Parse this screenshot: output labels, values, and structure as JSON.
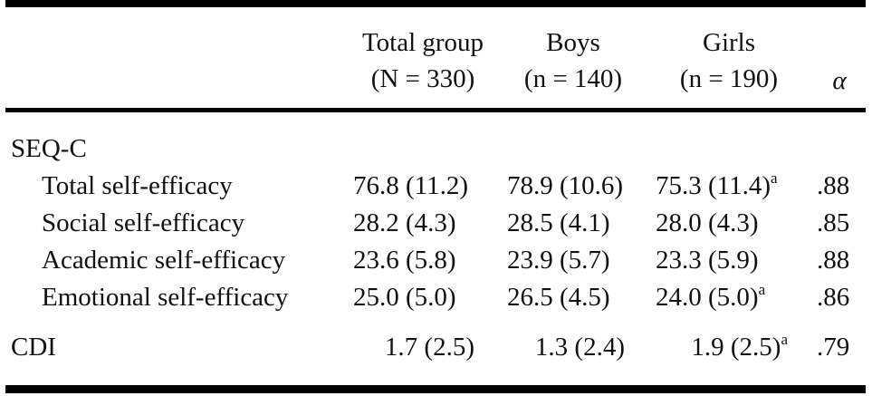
{
  "table": {
    "header": {
      "total_line1": "Total group",
      "total_line2": "(N = 330)",
      "boys_line1": "Boys",
      "boys_line2": "(n = 140)",
      "girls_line1": "Girls",
      "girls_line2": "(n = 190)",
      "alpha": "α"
    },
    "section_seqc": "SEQ-C",
    "rows": [
      {
        "label": "Total self-efficacy",
        "total": "76.8 (11.2)",
        "boys": "78.9 (10.6)",
        "girls": "75.3 (11.4)",
        "girls_note": "a",
        "alpha": ".88"
      },
      {
        "label": "Social self-efficacy",
        "total": "28.2 (4.3)",
        "boys": "28.5 (4.1)",
        "girls": "28.0 (4.3)",
        "girls_note": "",
        "alpha": ".85"
      },
      {
        "label": "Academic self-efficacy",
        "total": "23.6 (5.8)",
        "boys": "23.9 (5.7)",
        "girls": "23.3 (5.9)",
        "girls_note": "",
        "alpha": ".88"
      },
      {
        "label": "Emotional self-efficacy",
        "total": "25.0 (5.0)",
        "boys": "26.5 (4.5)",
        "girls": "24.0 (5.0)",
        "girls_note": "a",
        "alpha": ".86"
      }
    ],
    "cdi": {
      "label": "CDI",
      "total": "1.7 (2.5)",
      "boys": "1.3 (2.4)",
      "girls": "1.9 (2.5)",
      "girls_note": "a",
      "alpha": ".79"
    }
  }
}
